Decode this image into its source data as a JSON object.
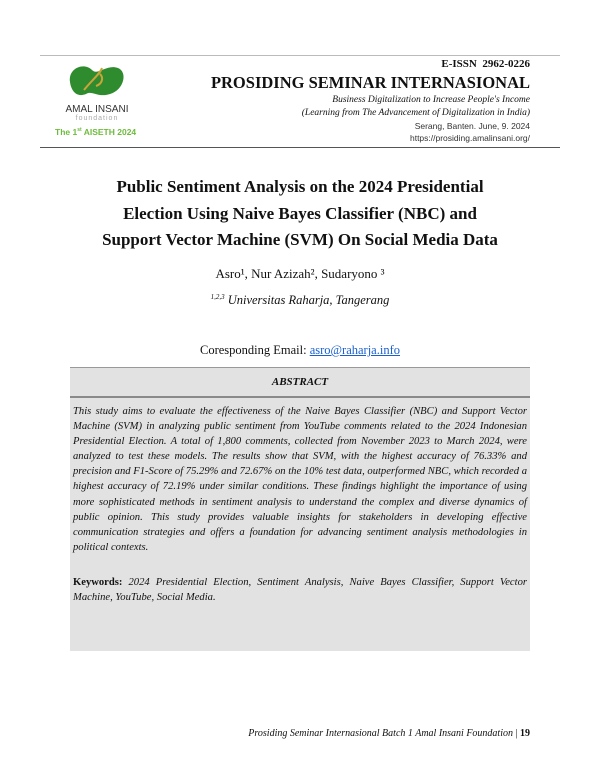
{
  "header": {
    "logo_text": "AMAL INSANI",
    "logo_subtext": "foundation",
    "event": "The 1",
    "event_sup": "st",
    "event_rest": " AISETH 2024",
    "issn": "E-ISSN  2962-0226",
    "journal": "PROSIDING SEMINAR INTERNASIONAL",
    "theme_line1": "Business Digitalization to Increase People's Income",
    "theme_line2": "(Learning from The Advancement of Digitalization in India)",
    "place_date": "Serang, Banten. June, 9. 2024",
    "url": "https://prosiding.amalinsani.org/"
  },
  "paper": {
    "title_lines": [
      "Public Sentiment Analysis on the 2024 Presidential",
      "Election Using Naive Bayes Classifier (NBC) and",
      "Support Vector Machine (SVM) On Social Media Data"
    ],
    "authors": "Asro¹, Nur Azizah², Sudaryono ³",
    "affiliation_sup": "1,2,3",
    "affiliation": " Universitas Raharja, Tangerang",
    "email_label": "Coresponding Email: ",
    "email": "asro@raharja.info"
  },
  "abstract": {
    "heading": "ABSTRACT",
    "text": "This study aims to evaluate the effectiveness of the Naive Bayes Classifier (NBC) and Support Vector Machine (SVM) in analyzing public sentiment from YouTube comments related to the 2024 Indonesian Presidential Election. A total of 1,800 comments, collected from November 2023 to March 2024, were analyzed to test these models. The results show that SVM, with the highest accuracy of 76.33% and precision and F1-Score of 75.29% and 72.67% on the 10% test data, outperformed NBC, which recorded a highest accuracy of 72.19% under similar conditions. These findings highlight the importance of using more sophisticated methods in sentiment analysis to understand the complex and diverse dynamics of public opinion. This study provides valuable insights for stakeholders in developing effective communication strategies and offers a foundation for advancing sentiment analysis methodologies in political contexts.",
    "keywords_label": "Keywords:",
    "keywords": " 2024 Presidential Election, Sentiment Analysis, Naive Bayes Classifier, Support Vector Machine, YouTube, Social Media."
  },
  "footer": {
    "text": "Prosiding Seminar Internasional Batch 1 Amal Insani Foundation",
    "page": "19"
  },
  "colors": {
    "logo_green": "#2e8b2e",
    "event_green": "#6dbb3c",
    "link": "#1a5fd0"
  }
}
